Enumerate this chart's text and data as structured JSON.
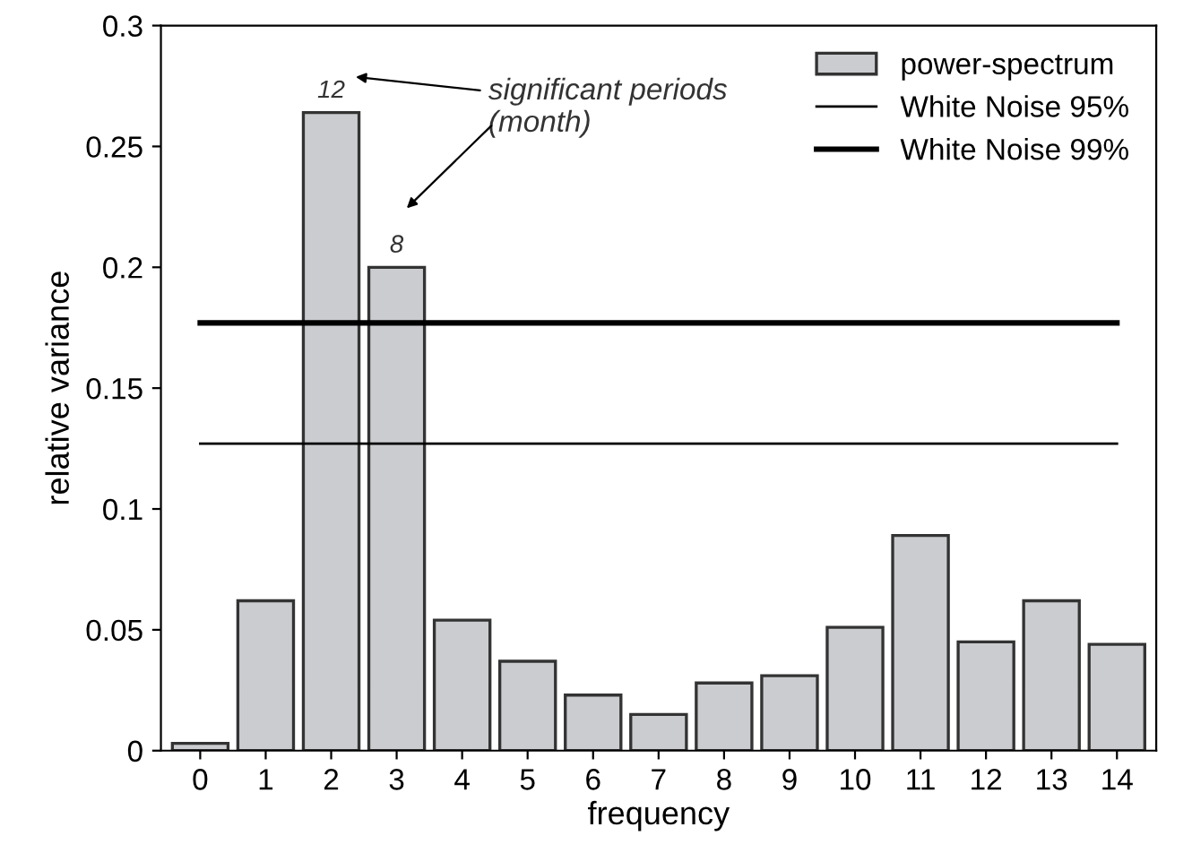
{
  "chart_data": {
    "type": "bar",
    "xlabel": "frequency",
    "ylabel": "relative variance",
    "categories": [
      "0",
      "1",
      "2",
      "3",
      "4",
      "5",
      "6",
      "7",
      "8",
      "9",
      "10",
      "11",
      "12",
      "13",
      "14"
    ],
    "ylim": [
      0,
      0.3
    ],
    "yticks": [
      0,
      0.05,
      0.1,
      0.15,
      0.2,
      0.25,
      0.3
    ],
    "grid": false,
    "legend": "top right",
    "series": [
      {
        "name": "power-spectrum",
        "color": "#cbcccf",
        "values": [
          0.003,
          0.062,
          0.264,
          0.2,
          0.054,
          0.037,
          0.023,
          0.015,
          0.028,
          0.031,
          0.051,
          0.089,
          0.045,
          0.062,
          0.044
        ]
      },
      {
        "name": "White Noise 95%",
        "type": "line",
        "color": "#000000",
        "x": [
          "0",
          "14"
        ],
        "values": [
          0.127,
          0.127
        ]
      },
      {
        "name": "White Noise 99%",
        "type": "line",
        "color": "#000000",
        "x": [
          "0",
          "14"
        ],
        "values": [
          0.177,
          0.177
        ]
      }
    ],
    "annotations": [
      {
        "text": "12",
        "x": "2",
        "y": 0.264
      },
      {
        "text": "8",
        "x": "3",
        "y": 0.2
      },
      "significant periods\n(month)"
    ]
  }
}
